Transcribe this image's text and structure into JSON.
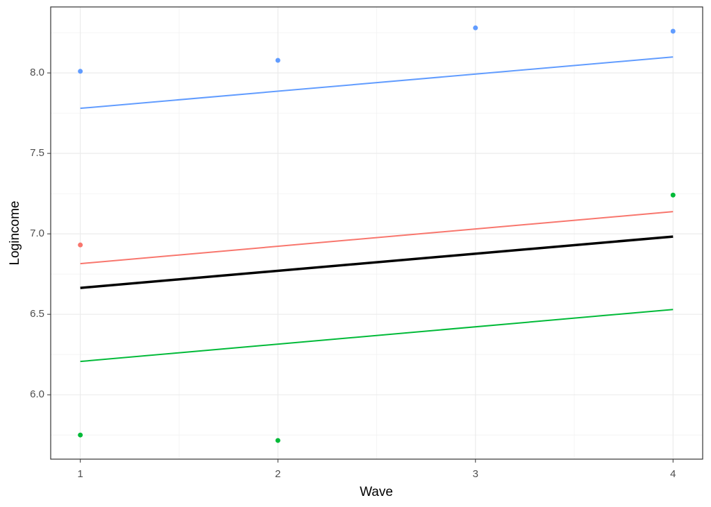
{
  "chart_data": {
    "type": "line",
    "x_label": "Wave",
    "y_label": "Logincome",
    "xlim": [
      0.85,
      4.15
    ],
    "ylim": [
      5.6,
      8.41
    ],
    "xticks": [
      1,
      2,
      3,
      4
    ],
    "yticks": [
      {
        "value": 6.0,
        "label": "6.0"
      },
      6.5,
      {
        "value": 7.0,
        "label": "7.0"
      },
      7.5,
      {
        "value": 8.0,
        "label": "8.0"
      }
    ],
    "x_minor_ticks": [
      1.5,
      2.5,
      3.5
    ],
    "y_minor_ticks": [
      5.75,
      6.25,
      6.75,
      7.25,
      7.75,
      8.25
    ],
    "grid": true,
    "series": [
      {
        "style": "point",
        "color": "#619CFF",
        "x": [
          1,
          2,
          3,
          4
        ],
        "values": [
          8.01,
          8.078,
          8.28,
          8.259
        ]
      },
      {
        "style": "point",
        "color": "#F8766D",
        "x": [
          1
        ],
        "values": [
          6.931
        ]
      },
      {
        "style": "point",
        "color": "#00BA38",
        "x": [
          1,
          2,
          4
        ],
        "values": [
          5.75,
          5.716,
          7.241
        ]
      },
      {
        "style": "line",
        "color": "#619CFF",
        "line_width": 2,
        "x": [
          1,
          4
        ],
        "values": [
          7.78,
          8.099
        ]
      },
      {
        "style": "line",
        "color": "#F8766D",
        "line_width": 2,
        "x": [
          1,
          4
        ],
        "values": [
          6.815,
          7.138
        ]
      },
      {
        "style": "line",
        "color": "#000000",
        "line_width": 3.5,
        "x": [
          1,
          4
        ],
        "values": [
          6.664,
          6.983
        ]
      },
      {
        "style": "line",
        "color": "#00BA38",
        "line_width": 2,
        "x": [
          1,
          4
        ],
        "values": [
          6.207,
          6.53
        ]
      }
    ]
  }
}
